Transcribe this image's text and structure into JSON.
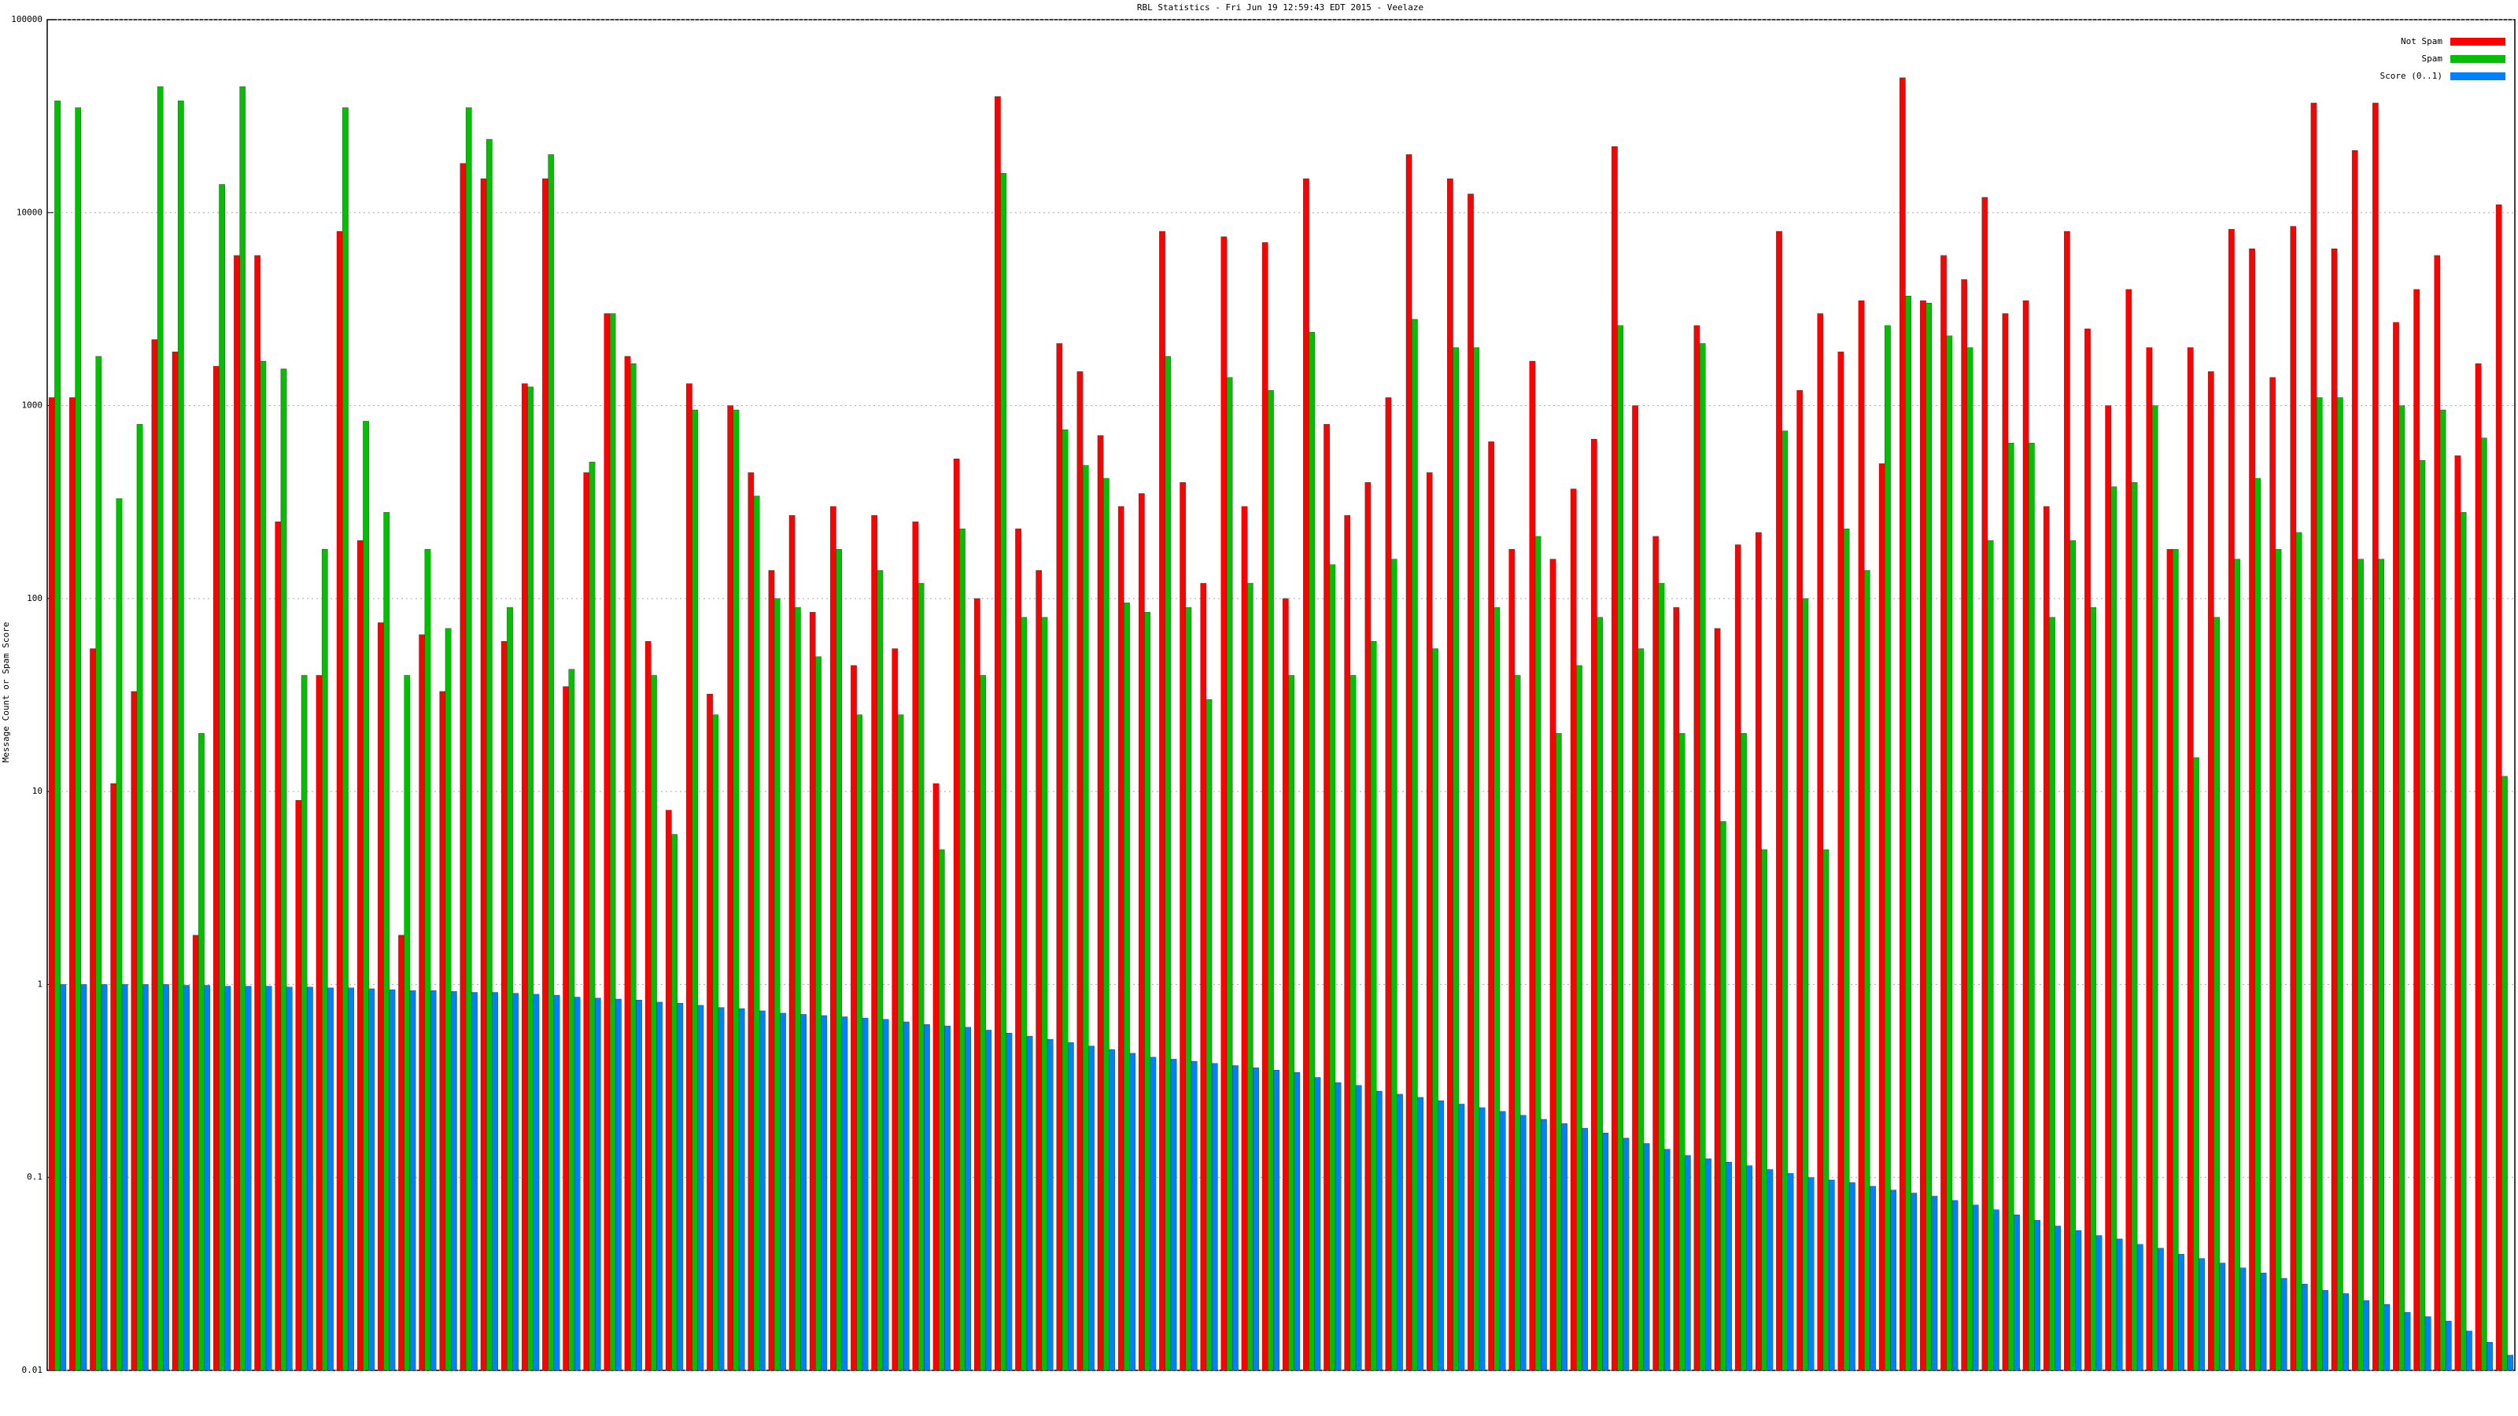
{
  "chart_data": {
    "type": "bar",
    "title": "RBL Statistics - Fri Jun 19 12:59:43 EDT 2015 - Veelaze",
    "ylabel": "Message Count or Spam Score",
    "log_scale": true,
    "grid": true,
    "legend": "upper right",
    "ylim": [
      0.01,
      100000
    ],
    "yticks": [
      0.01,
      0.1,
      1,
      10,
      100,
      1000,
      10000,
      100000
    ],
    "categories": [
      null,
      null,
      null,
      null,
      null,
      null,
      null,
      null,
      null,
      null,
      null,
      null,
      null,
      null,
      null,
      null,
      null,
      null,
      null,
      null,
      null,
      null,
      null,
      null,
      null,
      null,
      null,
      null,
      null,
      null,
      null,
      null,
      null,
      null,
      null,
      null,
      null,
      null,
      null,
      null,
      null,
      null,
      null,
      null,
      null,
      null,
      null,
      null,
      null,
      null,
      null,
      null,
      null,
      null,
      null,
      null,
      null,
      null,
      null,
      null,
      null,
      null,
      null,
      null,
      null,
      null,
      null,
      null,
      null,
      null,
      null,
      null,
      null,
      null,
      null,
      null,
      null,
      null,
      null,
      null,
      null,
      null,
      null,
      null,
      null,
      null,
      null,
      null,
      null,
      null,
      null,
      null,
      null,
      null,
      null,
      null,
      null,
      null,
      null,
      null,
      null,
      null,
      null,
      null,
      null,
      null,
      null,
      null,
      null,
      null,
      null,
      null,
      null,
      null,
      null,
      null,
      null,
      null,
      null,
      null
    ],
    "series": [
      {
        "name": "Not Spam",
        "color": "#ff0000",
        "values": [
          1100,
          1100,
          55,
          11,
          33,
          2200,
          1900,
          1.8,
          1600,
          6000,
          6000,
          250,
          9,
          40,
          8000,
          200,
          75,
          1.8,
          65,
          33,
          18000,
          15000,
          60,
          1300,
          15000,
          35,
          450,
          3000,
          1800,
          60,
          8,
          1300,
          32,
          1000,
          450,
          140,
          270,
          85,
          300,
          45,
          270,
          55,
          250,
          11,
          530,
          100,
          40000,
          230,
          140,
          2100,
          1500,
          700,
          300,
          350,
          8000,
          400,
          120,
          7500,
          300,
          7000,
          100,
          15000,
          800,
          270,
          400,
          1100,
          20000,
          450,
          15000,
          12500,
          650,
          180,
          1700,
          160,
          370,
          670,
          22000,
          1000,
          210,
          90,
          2600,
          70,
          190,
          220,
          8000,
          1200,
          3000,
          1900,
          3500,
          500,
          50000,
          3500,
          6000,
          4500,
          12000,
          3000,
          3500,
          300,
          8000,
          2500,
          1000,
          4000,
          2000,
          180,
          2000,
          1500,
          8200,
          6500,
          1400,
          8500,
          37000,
          6500,
          21000,
          37000,
          2700,
          4000,
          6000,
          550,
          1650,
          11000
        ]
      },
      {
        "name": "Spam",
        "color": "#00c000",
        "values": [
          38000,
          35000,
          1800,
          330,
          800,
          45000,
          38000,
          20,
          14000,
          45000,
          1700,
          1550,
          40,
          180,
          35000,
          830,
          280,
          40,
          180,
          70,
          35000,
          24000,
          90,
          1250,
          20000,
          43,
          510,
          3000,
          1650,
          40,
          6,
          950,
          25,
          950,
          340,
          100,
          90,
          50,
          180,
          25,
          140,
          25,
          120,
          5,
          230,
          40,
          16000,
          80,
          80,
          750,
          490,
          420,
          95,
          85,
          1800,
          90,
          30,
          1400,
          120,
          1200,
          40,
          2400,
          150,
          40,
          60,
          160,
          2800,
          55,
          2000,
          2000,
          90,
          40,
          210,
          20,
          45,
          80,
          2600,
          55,
          120,
          20,
          2100,
          7,
          20,
          5,
          740,
          100,
          5,
          230,
          140,
          2600,
          3700,
          3400,
          2300,
          2000,
          200,
          640,
          640,
          80,
          200,
          90,
          380,
          400,
          1000,
          180,
          15,
          80,
          160,
          420,
          180,
          220,
          1100,
          1100,
          160,
          160,
          1000,
          520,
          950,
          280,
          680,
          12
        ]
      },
      {
        "name": "Score (0..1)",
        "color": "#0080ff",
        "values": [
          1,
          1,
          1,
          1,
          1,
          1,
          0.99,
          0.99,
          0.98,
          0.98,
          0.98,
          0.97,
          0.97,
          0.96,
          0.96,
          0.95,
          0.94,
          0.93,
          0.93,
          0.92,
          0.91,
          0.91,
          0.9,
          0.89,
          0.88,
          0.86,
          0.85,
          0.84,
          0.83,
          0.81,
          0.8,
          0.78,
          0.76,
          0.75,
          0.73,
          0.71,
          0.7,
          0.69,
          0.68,
          0.67,
          0.66,
          0.64,
          0.62,
          0.61,
          0.6,
          0.58,
          0.56,
          0.54,
          0.52,
          0.5,
          0.48,
          0.46,
          0.44,
          0.42,
          0.41,
          0.4,
          0.39,
          0.38,
          0.37,
          0.36,
          0.35,
          0.33,
          0.31,
          0.3,
          0.28,
          0.27,
          0.26,
          0.25,
          0.24,
          0.23,
          0.22,
          0.21,
          0.2,
          0.19,
          0.18,
          0.17,
          0.16,
          0.15,
          0.14,
          0.13,
          0.125,
          0.12,
          0.115,
          0.11,
          0.105,
          0.1,
          0.097,
          0.094,
          0.09,
          0.086,
          0.083,
          0.08,
          0.076,
          0.072,
          0.068,
          0.064,
          0.06,
          0.056,
          0.053,
          0.05,
          0.048,
          0.045,
          0.043,
          0.04,
          0.038,
          0.036,
          0.034,
          0.032,
          0.03,
          0.028,
          0.026,
          0.025,
          0.023,
          0.022,
          0.02,
          0.019,
          0.018,
          0.016,
          0.014,
          0.012
        ]
      }
    ]
  }
}
